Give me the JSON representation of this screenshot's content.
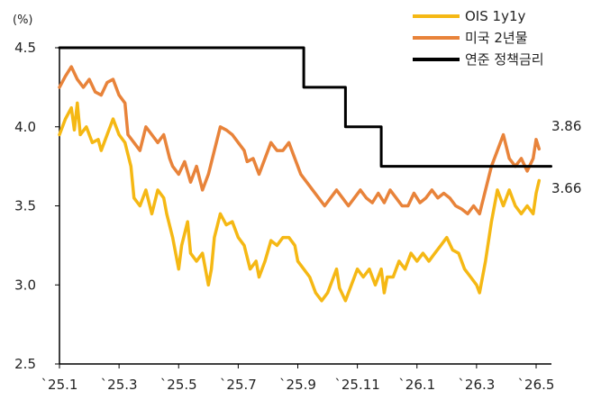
{
  "chart_data": {
    "type": "line",
    "ylabel": "(%)",
    "ylim": [
      2.5,
      4.5
    ],
    "yticks": [
      "2.5",
      "3.0",
      "3.5",
      "4.0",
      "4.5"
    ],
    "xticks": [
      "`25.1",
      "`25.3",
      "`25.5",
      "`25.7",
      "`25.9",
      "`25.11",
      "`26.1",
      "`26.3",
      "`26.5"
    ],
    "grid": false,
    "legend_position": "top-right",
    "series": [
      {
        "name": "OIS 1y1y",
        "color": "#F5B814",
        "end_label": "3.66",
        "points": [
          [
            0,
            3.95
          ],
          [
            0.1,
            4.05
          ],
          [
            0.2,
            4.12
          ],
          [
            0.25,
            3.98
          ],
          [
            0.3,
            4.15
          ],
          [
            0.35,
            3.95
          ],
          [
            0.45,
            4.0
          ],
          [
            0.55,
            3.9
          ],
          [
            0.65,
            3.92
          ],
          [
            0.7,
            3.85
          ],
          [
            0.8,
            3.95
          ],
          [
            0.9,
            4.05
          ],
          [
            1.0,
            3.95
          ],
          [
            1.1,
            3.9
          ],
          [
            1.2,
            3.75
          ],
          [
            1.25,
            3.55
          ],
          [
            1.35,
            3.5
          ],
          [
            1.45,
            3.6
          ],
          [
            1.55,
            3.45
          ],
          [
            1.65,
            3.6
          ],
          [
            1.75,
            3.55
          ],
          [
            1.8,
            3.45
          ],
          [
            1.9,
            3.3
          ],
          [
            2.0,
            3.1
          ],
          [
            2.05,
            3.25
          ],
          [
            2.15,
            3.4
          ],
          [
            2.2,
            3.2
          ],
          [
            2.3,
            3.15
          ],
          [
            2.4,
            3.2
          ],
          [
            2.5,
            3.0
          ],
          [
            2.55,
            3.1
          ],
          [
            2.6,
            3.3
          ],
          [
            2.7,
            3.45
          ],
          [
            2.8,
            3.38
          ],
          [
            2.9,
            3.4
          ],
          [
            3.0,
            3.3
          ],
          [
            3.1,
            3.25
          ],
          [
            3.2,
            3.1
          ],
          [
            3.3,
            3.15
          ],
          [
            3.35,
            3.05
          ],
          [
            3.45,
            3.15
          ],
          [
            3.55,
            3.28
          ],
          [
            3.65,
            3.25
          ],
          [
            3.75,
            3.3
          ],
          [
            3.85,
            3.3
          ],
          [
            3.95,
            3.25
          ],
          [
            4.0,
            3.15
          ],
          [
            4.1,
            3.1
          ],
          [
            4.2,
            3.05
          ],
          [
            4.3,
            2.95
          ],
          [
            4.4,
            2.9
          ],
          [
            4.5,
            2.95
          ],
          [
            4.6,
            3.05
          ],
          [
            4.65,
            3.1
          ],
          [
            4.7,
            2.98
          ],
          [
            4.8,
            2.9
          ],
          [
            4.9,
            3.0
          ],
          [
            5.0,
            3.1
          ],
          [
            5.1,
            3.05
          ],
          [
            5.2,
            3.1
          ],
          [
            5.3,
            3.0
          ],
          [
            5.4,
            3.1
          ],
          [
            5.45,
            2.95
          ],
          [
            5.5,
            3.05
          ],
          [
            5.6,
            3.05
          ],
          [
            5.7,
            3.15
          ],
          [
            5.8,
            3.1
          ],
          [
            5.9,
            3.2
          ],
          [
            6.0,
            3.15
          ],
          [
            6.1,
            3.2
          ],
          [
            6.2,
            3.15
          ],
          [
            6.3,
            3.2
          ],
          [
            6.4,
            3.25
          ],
          [
            6.5,
            3.3
          ],
          [
            6.6,
            3.22
          ],
          [
            6.7,
            3.2
          ],
          [
            6.8,
            3.1
          ],
          [
            6.9,
            3.05
          ],
          [
            7.0,
            3.0
          ],
          [
            7.05,
            2.95
          ],
          [
            7.1,
            3.05
          ],
          [
            7.15,
            3.15
          ],
          [
            7.25,
            3.4
          ],
          [
            7.35,
            3.6
          ],
          [
            7.45,
            3.5
          ],
          [
            7.55,
            3.6
          ],
          [
            7.65,
            3.5
          ],
          [
            7.75,
            3.45
          ],
          [
            7.85,
            3.5
          ],
          [
            7.95,
            3.45
          ],
          [
            8.0,
            3.58
          ],
          [
            8.05,
            3.66
          ]
        ]
      },
      {
        "name": "미국 2년물",
        "color": "#E8833A",
        "end_label": "3.86",
        "points": [
          [
            0,
            4.25
          ],
          [
            0.1,
            4.32
          ],
          [
            0.2,
            4.38
          ],
          [
            0.3,
            4.3
          ],
          [
            0.4,
            4.25
          ],
          [
            0.5,
            4.3
          ],
          [
            0.6,
            4.22
          ],
          [
            0.7,
            4.2
          ],
          [
            0.8,
            4.28
          ],
          [
            0.9,
            4.3
          ],
          [
            1.0,
            4.2
          ],
          [
            1.1,
            4.15
          ],
          [
            1.15,
            3.95
          ],
          [
            1.25,
            3.9
          ],
          [
            1.35,
            3.85
          ],
          [
            1.45,
            4.0
          ],
          [
            1.55,
            3.95
          ],
          [
            1.65,
            3.9
          ],
          [
            1.75,
            3.95
          ],
          [
            1.85,
            3.8
          ],
          [
            1.9,
            3.75
          ],
          [
            2.0,
            3.7
          ],
          [
            2.1,
            3.78
          ],
          [
            2.2,
            3.65
          ],
          [
            2.3,
            3.75
          ],
          [
            2.4,
            3.6
          ],
          [
            2.5,
            3.7
          ],
          [
            2.6,
            3.85
          ],
          [
            2.7,
            4.0
          ],
          [
            2.8,
            3.98
          ],
          [
            2.9,
            3.95
          ],
          [
            3.0,
            3.9
          ],
          [
            3.1,
            3.85
          ],
          [
            3.15,
            3.78
          ],
          [
            3.25,
            3.8
          ],
          [
            3.35,
            3.7
          ],
          [
            3.45,
            3.8
          ],
          [
            3.55,
            3.9
          ],
          [
            3.65,
            3.85
          ],
          [
            3.75,
            3.85
          ],
          [
            3.85,
            3.9
          ],
          [
            3.95,
            3.8
          ],
          [
            4.05,
            3.7
          ],
          [
            4.15,
            3.65
          ],
          [
            4.25,
            3.6
          ],
          [
            4.35,
            3.55
          ],
          [
            4.45,
            3.5
          ],
          [
            4.55,
            3.55
          ],
          [
            4.65,
            3.6
          ],
          [
            4.75,
            3.55
          ],
          [
            4.85,
            3.5
          ],
          [
            4.95,
            3.55
          ],
          [
            5.05,
            3.6
          ],
          [
            5.15,
            3.55
          ],
          [
            5.25,
            3.52
          ],
          [
            5.35,
            3.58
          ],
          [
            5.45,
            3.52
          ],
          [
            5.55,
            3.6
          ],
          [
            5.65,
            3.55
          ],
          [
            5.75,
            3.5
          ],
          [
            5.85,
            3.5
          ],
          [
            5.95,
            3.58
          ],
          [
            6.05,
            3.52
          ],
          [
            6.15,
            3.55
          ],
          [
            6.25,
            3.6
          ],
          [
            6.35,
            3.55
          ],
          [
            6.45,
            3.58
          ],
          [
            6.55,
            3.55
          ],
          [
            6.65,
            3.5
          ],
          [
            6.75,
            3.48
          ],
          [
            6.85,
            3.45
          ],
          [
            6.95,
            3.5
          ],
          [
            7.05,
            3.45
          ],
          [
            7.15,
            3.6
          ],
          [
            7.25,
            3.75
          ],
          [
            7.35,
            3.85
          ],
          [
            7.45,
            3.95
          ],
          [
            7.55,
            3.8
          ],
          [
            7.65,
            3.75
          ],
          [
            7.75,
            3.8
          ],
          [
            7.85,
            3.72
          ],
          [
            7.95,
            3.8
          ],
          [
            8.0,
            3.92
          ],
          [
            8.05,
            3.86
          ]
        ]
      },
      {
        "name": "연준 정책금리",
        "color": "#000000",
        "end_label": "",
        "points": [
          [
            0,
            4.5
          ],
          [
            4.1,
            4.5
          ],
          [
            4.1,
            4.25
          ],
          [
            4.8,
            4.25
          ],
          [
            4.8,
            4.0
          ],
          [
            5.4,
            4.0
          ],
          [
            5.4,
            3.75
          ],
          [
            8.25,
            3.75
          ]
        ]
      }
    ]
  }
}
